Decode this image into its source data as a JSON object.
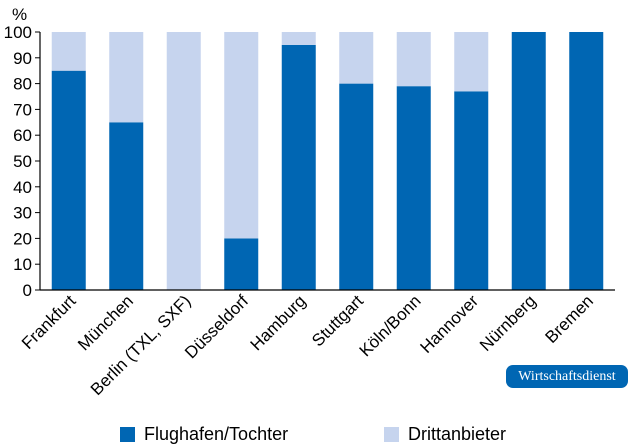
{
  "chart_data": {
    "type": "bar",
    "stacked": true,
    "y_unit": "%",
    "ylim": [
      0,
      100
    ],
    "yticks": [
      0,
      10,
      20,
      30,
      40,
      50,
      60,
      70,
      80,
      90,
      100
    ],
    "grid": false,
    "categories": [
      "Frankfurt",
      "München",
      "Berlin (TXL, SXF)",
      "Düsseldorf",
      "Hamburg",
      "Stuttgart",
      "Köln/Bonn",
      "Hannover",
      "Nürnberg",
      "Bremen"
    ],
    "series": [
      {
        "name": "Flughafen/Tochter",
        "color": "#0066b3",
        "values": [
          85,
          65,
          0,
          20,
          95,
          80,
          79,
          77,
          100,
          100
        ]
      },
      {
        "name": "Drittanbieter",
        "color": "#c6d4ee",
        "values": [
          15,
          35,
          100,
          80,
          5,
          20,
          21,
          23,
          0,
          0
        ]
      }
    ],
    "legend_position": "bottom",
    "source_badge": "Wirtschaftsdienst",
    "badge_color": "#0066b3"
  }
}
